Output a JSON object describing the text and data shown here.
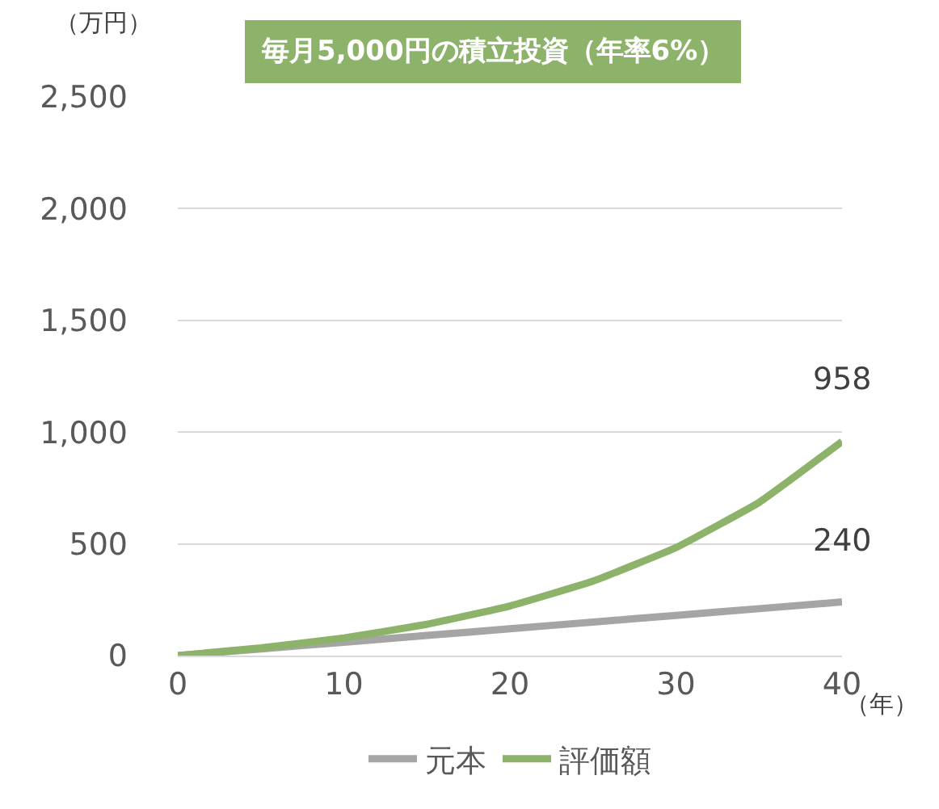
{
  "chart_data": {
    "type": "line",
    "title": "毎月5,000円の積立投資（年率6%）",
    "ylabel": "（万円）",
    "xlabel": "（年）",
    "x": [
      0,
      5,
      10,
      15,
      20,
      25,
      30,
      35,
      40
    ],
    "series": [
      {
        "name": "元本",
        "color": "#a5a5a5",
        "values": [
          0,
          30,
          60,
          90,
          120,
          150,
          180,
          210,
          240
        ]
      },
      {
        "name": "評価額",
        "color": "#8cb369",
        "values": [
          0,
          34,
          79,
          140,
          222,
          333,
          483,
          685,
          958
        ]
      }
    ],
    "annotations": [
      {
        "text": "958",
        "x": 40,
        "y": 958
      },
      {
        "text": "240",
        "x": 40,
        "y": 240
      }
    ],
    "xlim": [
      0,
      40
    ],
    "xticks": [
      0,
      10,
      20,
      30,
      40
    ],
    "ylim": [
      0,
      2500
    ],
    "yticks": [
      0,
      {
        "value": 500,
        "label": "500"
      },
      {
        "value": 1000,
        "label": "1,000"
      },
      {
        "value": 1500,
        "label": "1,500"
      },
      {
        "value": 2000,
        "label": "2,000"
      },
      {
        "value": 2500,
        "label": "2,500"
      }
    ],
    "grid": "y",
    "legend": "bottom",
    "marker": "none",
    "line_style": "solid"
  }
}
